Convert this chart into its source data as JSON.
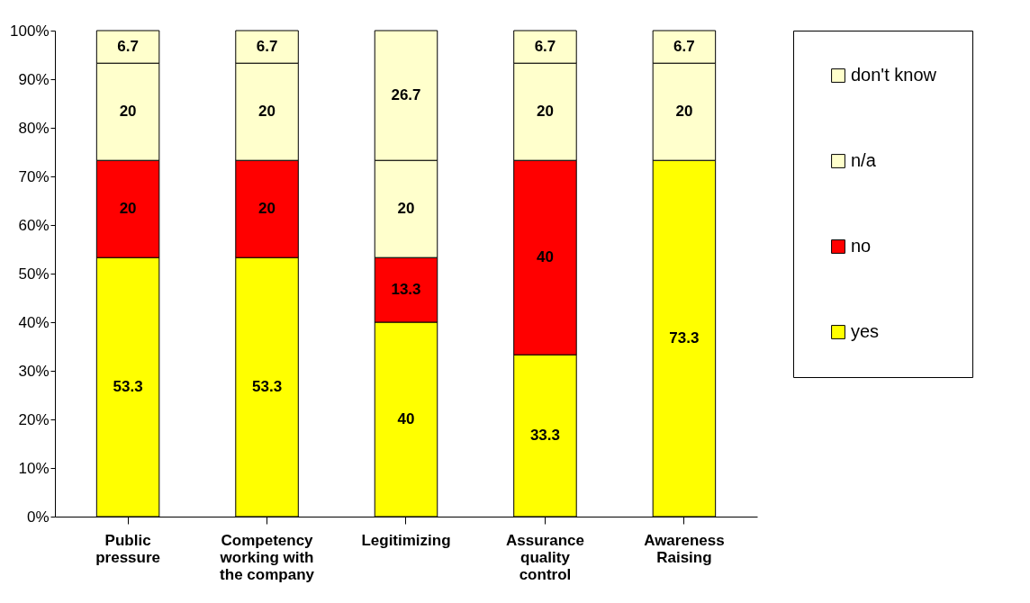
{
  "chart_data": {
    "type": "bar",
    "stacked": true,
    "categories": [
      "Public pressure",
      "Competency working with the company",
      "Legitimizing",
      "Assurance quality control",
      "Awareness Raising"
    ],
    "series": [
      {
        "name": "yes",
        "color": "#ffff00",
        "values": [
          53.3,
          53.3,
          40,
          33.3,
          73.3
        ]
      },
      {
        "name": "no",
        "color": "#ff0000",
        "values": [
          20,
          20,
          13.3,
          40,
          null
        ]
      },
      {
        "name": "n/a",
        "color": "#ffffcc",
        "values": [
          20,
          20,
          20,
          20,
          20
        ]
      },
      {
        "name": "don't know",
        "color": "#ffffcc",
        "values": [
          6.7,
          6.7,
          26.7,
          6.7,
          6.7
        ]
      }
    ],
    "ylim": [
      0,
      100
    ],
    "yticks": [
      {
        "value": 0,
        "label": "0%"
      },
      {
        "value": 10,
        "label": "10%"
      },
      {
        "value": 20,
        "label": "20%"
      },
      {
        "value": 30,
        "label": "30%"
      },
      {
        "value": 40,
        "label": "40%"
      },
      {
        "value": 50,
        "label": "50%"
      },
      {
        "value": 60,
        "label": "60%"
      },
      {
        "value": 70,
        "label": "70%"
      },
      {
        "value": 80,
        "label": "80%"
      },
      {
        "value": 90,
        "label": "90%"
      },
      {
        "value": 100,
        "label": "100%"
      }
    ],
    "data_labels": true,
    "legend": "right",
    "grid": false
  }
}
